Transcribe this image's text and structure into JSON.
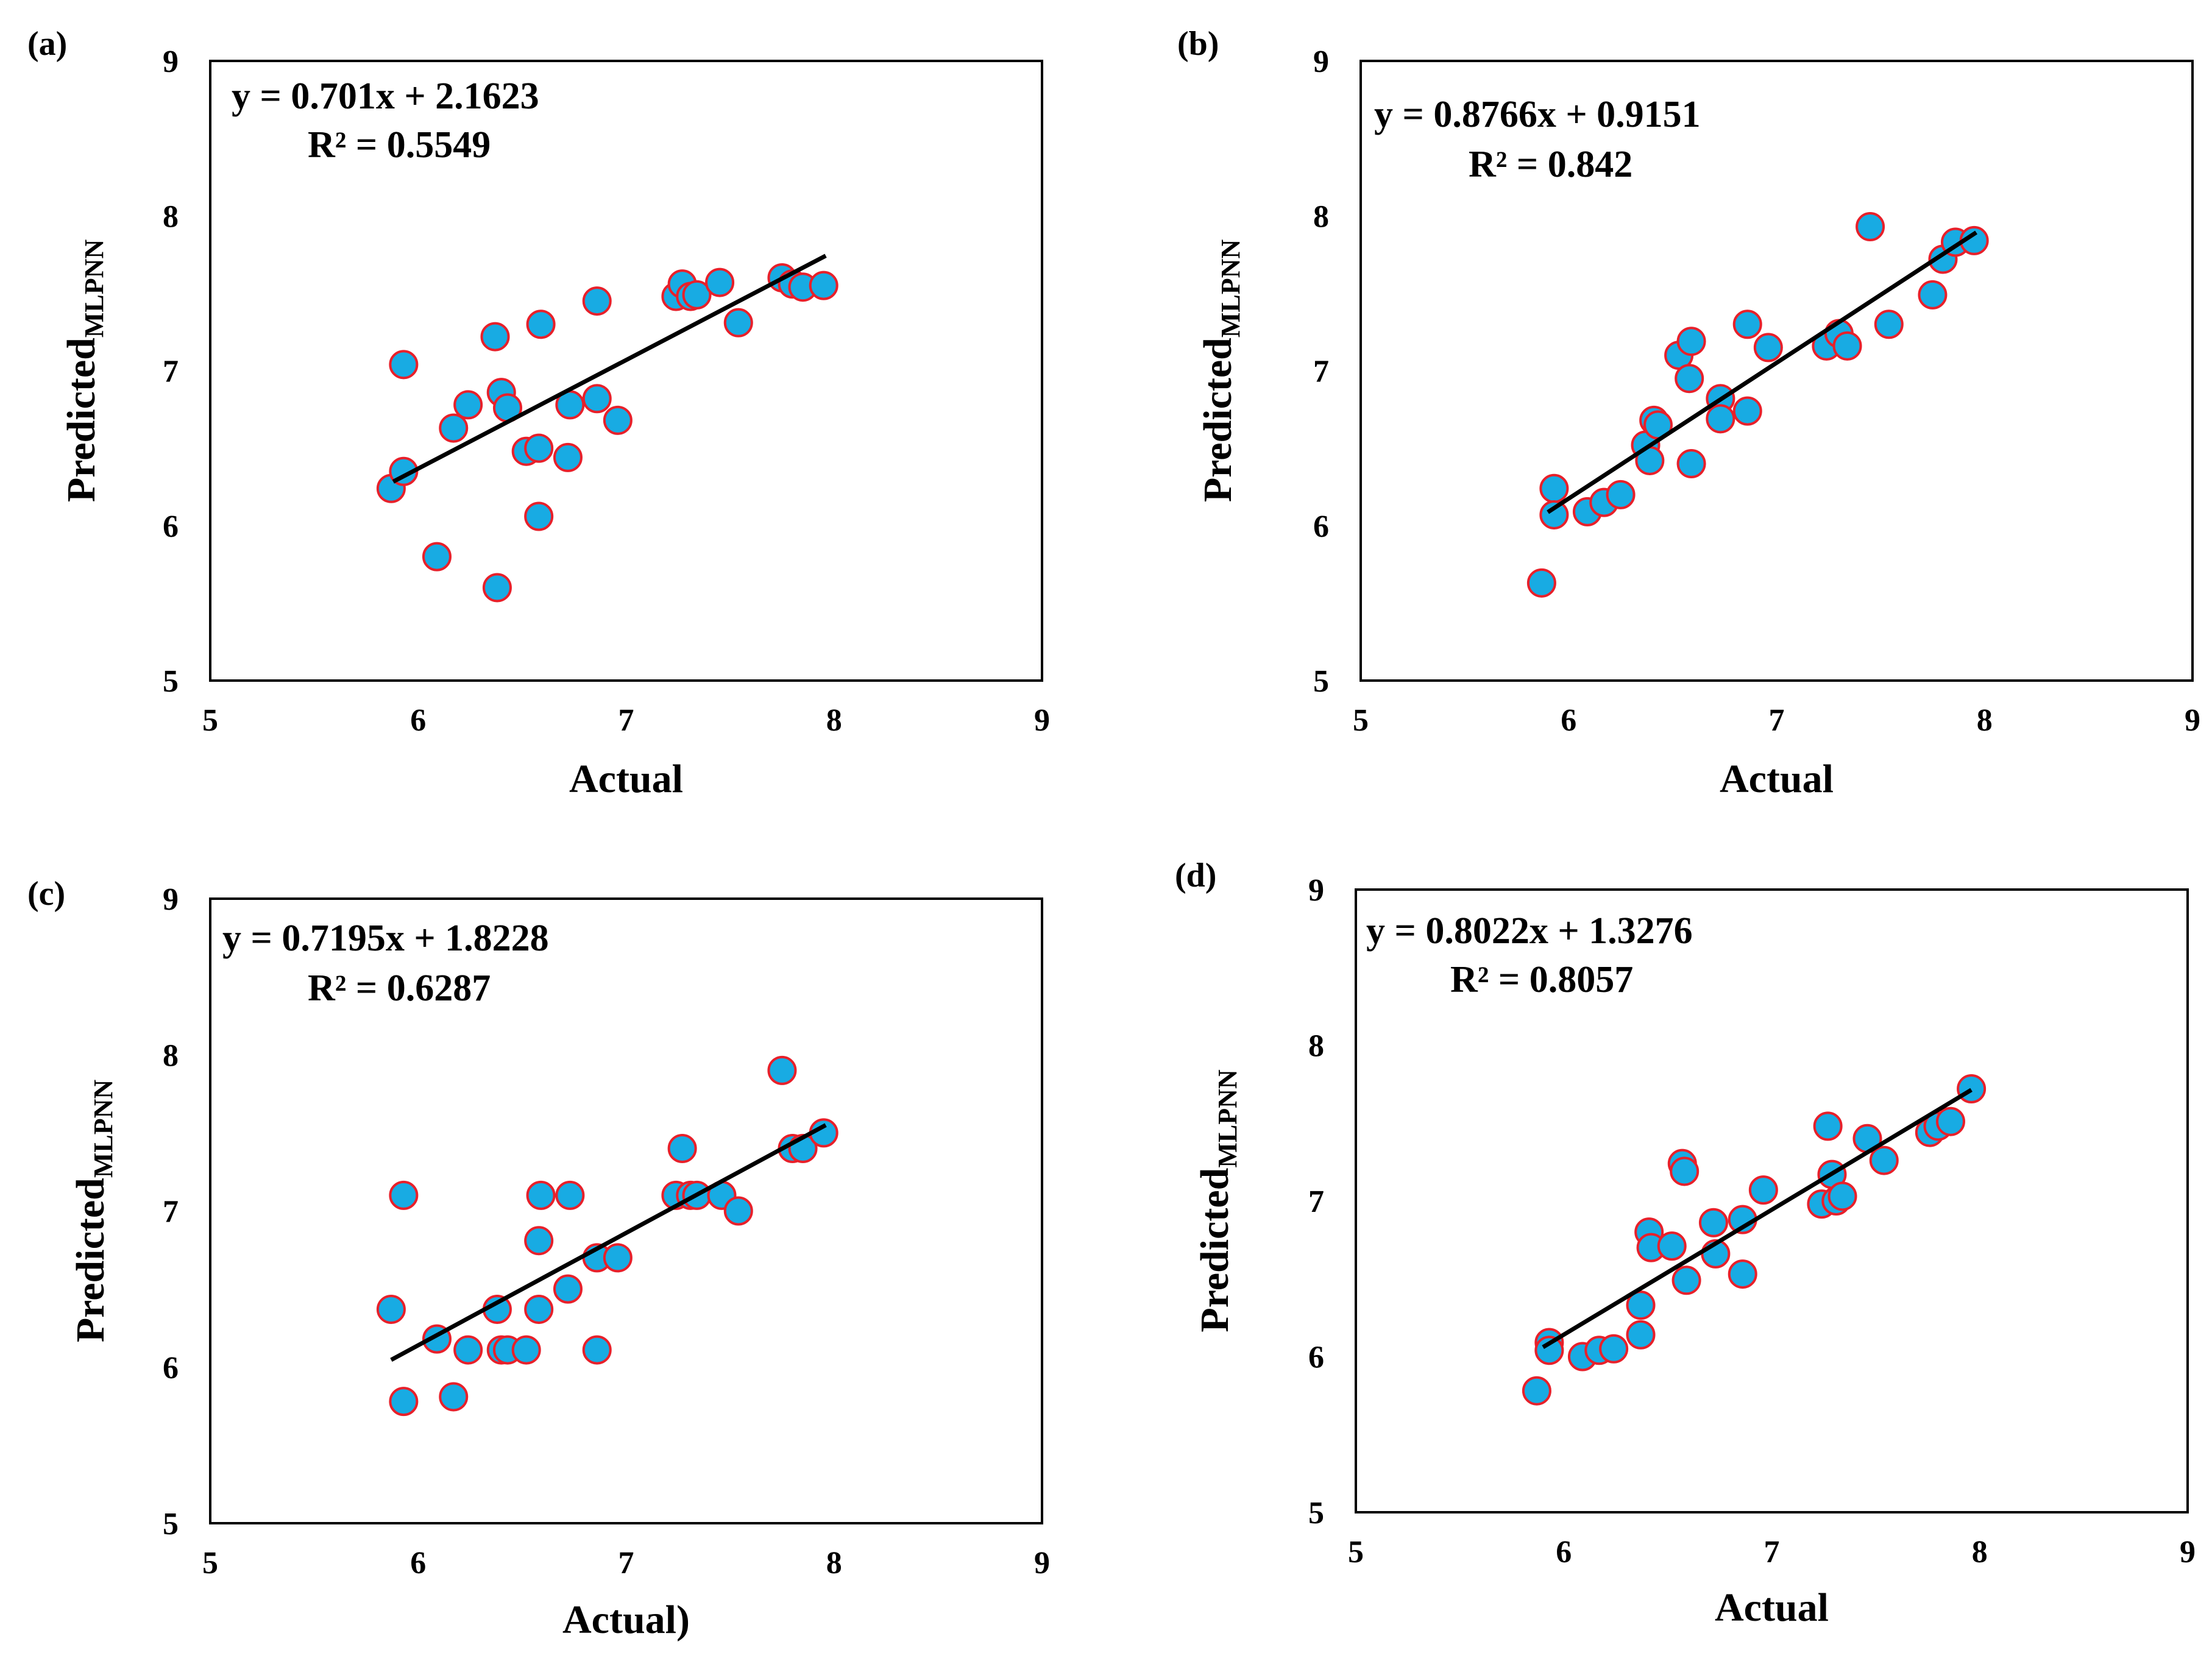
{
  "colors": {
    "marker_fill": "#18ABE3",
    "marker_edge": "#E8202A",
    "trendline": "#000000",
    "background": "#FFFFFF"
  },
  "chart_data": [
    {
      "type": "scatter",
      "panel_label": "(a)",
      "xlabel": "Actual",
      "ylabel_main": "Predicted",
      "ylabel_sub": "MLPNN",
      "xlim": [
        5,
        9
      ],
      "ylim": [
        5,
        9
      ],
      "xticks": [
        "5",
        "6",
        "7",
        "8",
        "9"
      ],
      "yticks": [
        "5",
        "6",
        "7",
        "8",
        "9"
      ],
      "grid": false,
      "equation": "y = 0.701x + 2.1623",
      "r_squared": "R² = 0.5549",
      "trendline": {
        "slope": 0.701,
        "intercept": 2.1623,
        "x_range": [
          5.88,
          7.96
        ]
      },
      "points": [
        {
          "x": 5.87,
          "y": 6.24
        },
        {
          "x": 5.93,
          "y": 6.35
        },
        {
          "x": 5.93,
          "y": 7.04
        },
        {
          "x": 6.09,
          "y": 5.8
        },
        {
          "x": 6.17,
          "y": 6.63
        },
        {
          "x": 6.24,
          "y": 6.78
        },
        {
          "x": 6.37,
          "y": 7.22
        },
        {
          "x": 6.38,
          "y": 5.6
        },
        {
          "x": 6.4,
          "y": 6.86
        },
        {
          "x": 6.43,
          "y": 6.76
        },
        {
          "x": 6.52,
          "y": 6.48
        },
        {
          "x": 6.58,
          "y": 6.5
        },
        {
          "x": 6.58,
          "y": 6.06
        },
        {
          "x": 6.59,
          "y": 7.3
        },
        {
          "x": 6.72,
          "y": 6.44
        },
        {
          "x": 6.73,
          "y": 6.78
        },
        {
          "x": 6.86,
          "y": 7.45
        },
        {
          "x": 6.86,
          "y": 6.82
        },
        {
          "x": 6.96,
          "y": 6.68
        },
        {
          "x": 7.24,
          "y": 7.48
        },
        {
          "x": 7.27,
          "y": 7.56
        },
        {
          "x": 7.31,
          "y": 7.48
        },
        {
          "x": 7.34,
          "y": 7.49
        },
        {
          "x": 7.45,
          "y": 7.57
        },
        {
          "x": 7.54,
          "y": 7.31
        },
        {
          "x": 7.75,
          "y": 7.6
        },
        {
          "x": 7.8,
          "y": 7.56
        },
        {
          "x": 7.85,
          "y": 7.54
        },
        {
          "x": 7.95,
          "y": 7.55
        }
      ]
    },
    {
      "type": "scatter",
      "panel_label": "(b)",
      "xlabel": "Actual",
      "ylabel_main": "Predicted",
      "ylabel_sub": "MLPNN",
      "xlim": [
        5,
        9
      ],
      "ylim": [
        5,
        9
      ],
      "xticks": [
        "5",
        "6",
        "7",
        "8",
        "9"
      ],
      "yticks": [
        "5",
        "6",
        "7",
        "8",
        "9"
      ],
      "grid": false,
      "equation": "y = 0.8766x + 0.9151",
      "r_squared": "R² = 0.842",
      "trendline": {
        "slope": 0.8766,
        "intercept": 0.9151,
        "x_range": [
          5.9,
          7.96
        ]
      },
      "points": [
        {
          "x": 5.87,
          "y": 5.63
        },
        {
          "x": 5.93,
          "y": 6.24
        },
        {
          "x": 5.93,
          "y": 6.07
        },
        {
          "x": 6.09,
          "y": 6.09
        },
        {
          "x": 6.17,
          "y": 6.15
        },
        {
          "x": 6.25,
          "y": 6.2
        },
        {
          "x": 6.37,
          "y": 6.52
        },
        {
          "x": 6.39,
          "y": 6.42
        },
        {
          "x": 6.41,
          "y": 6.68
        },
        {
          "x": 6.43,
          "y": 6.65
        },
        {
          "x": 6.53,
          "y": 7.1
        },
        {
          "x": 6.58,
          "y": 6.95
        },
        {
          "x": 6.59,
          "y": 7.19
        },
        {
          "x": 6.59,
          "y": 6.4
        },
        {
          "x": 6.73,
          "y": 6.82
        },
        {
          "x": 6.73,
          "y": 6.69
        },
        {
          "x": 6.86,
          "y": 7.3
        },
        {
          "x": 6.86,
          "y": 6.74
        },
        {
          "x": 6.96,
          "y": 7.15
        },
        {
          "x": 7.24,
          "y": 7.16
        },
        {
          "x": 7.3,
          "y": 7.24
        },
        {
          "x": 7.34,
          "y": 7.16
        },
        {
          "x": 7.45,
          "y": 7.93
        },
        {
          "x": 7.54,
          "y": 7.3
        },
        {
          "x": 7.75,
          "y": 7.49
        },
        {
          "x": 7.8,
          "y": 7.72
        },
        {
          "x": 7.86,
          "y": 7.83
        },
        {
          "x": 7.95,
          "y": 7.84
        }
      ]
    },
    {
      "type": "scatter",
      "panel_label": "(c)",
      "xlabel": "Actual)",
      "ylabel_main": "Predicted",
      "ylabel_sub": "MLPNN",
      "xlim": [
        5,
        9
      ],
      "ylim": [
        5,
        9
      ],
      "xticks": [
        "5",
        "6",
        "7",
        "8",
        "9"
      ],
      "yticks": [
        "5",
        "6",
        "7",
        "8",
        "9"
      ],
      "grid": false,
      "equation": "y = 0.7195x + 1.8228",
      "r_squared": "R² = 0.6287",
      "trendline": {
        "slope": 0.7195,
        "intercept": 1.8228,
        "x_range": [
          5.87,
          7.96
        ]
      },
      "points": [
        {
          "x": 5.87,
          "y": 6.37
        },
        {
          "x": 5.93,
          "y": 7.1
        },
        {
          "x": 5.93,
          "y": 5.78
        },
        {
          "x": 6.09,
          "y": 6.18
        },
        {
          "x": 6.17,
          "y": 5.81
        },
        {
          "x": 6.24,
          "y": 6.11
        },
        {
          "x": 6.38,
          "y": 6.37
        },
        {
          "x": 6.4,
          "y": 6.11
        },
        {
          "x": 6.43,
          "y": 6.11
        },
        {
          "x": 6.52,
          "y": 6.11
        },
        {
          "x": 6.58,
          "y": 6.37
        },
        {
          "x": 6.58,
          "y": 6.81
        },
        {
          "x": 6.59,
          "y": 7.1
        },
        {
          "x": 6.72,
          "y": 6.5
        },
        {
          "x": 6.73,
          "y": 7.1
        },
        {
          "x": 6.86,
          "y": 6.7
        },
        {
          "x": 6.86,
          "y": 6.11
        },
        {
          "x": 6.96,
          "y": 6.7
        },
        {
          "x": 7.24,
          "y": 7.1
        },
        {
          "x": 7.27,
          "y": 7.4
        },
        {
          "x": 7.31,
          "y": 7.1
        },
        {
          "x": 7.34,
          "y": 7.1
        },
        {
          "x": 7.46,
          "y": 7.1
        },
        {
          "x": 7.54,
          "y": 7.0
        },
        {
          "x": 7.75,
          "y": 7.9
        },
        {
          "x": 7.8,
          "y": 7.4
        },
        {
          "x": 7.85,
          "y": 7.4
        },
        {
          "x": 7.95,
          "y": 7.5
        }
      ]
    },
    {
      "type": "scatter",
      "panel_label": "(d)",
      "xlabel": "Actual",
      "ylabel_main": "Predicted",
      "ylabel_sub": "MLPNN",
      "xlim": [
        5,
        9
      ],
      "ylim": [
        5,
        9
      ],
      "xticks": [
        "5",
        "6",
        "7",
        "8",
        "9"
      ],
      "yticks": [
        "5",
        "6",
        "7",
        "8",
        "9"
      ],
      "grid": false,
      "equation": "y = 0.8022x + 1.3276",
      "r_squared": "R² = 0.8057",
      "trendline": {
        "slope": 0.8022,
        "intercept": 1.3276,
        "x_range": [
          5.9,
          7.96
        ]
      },
      "points": [
        {
          "x": 5.87,
          "y": 5.78
        },
        {
          "x": 5.93,
          "y": 6.09
        },
        {
          "x": 5.93,
          "y": 6.04
        },
        {
          "x": 6.09,
          "y": 6.0
        },
        {
          "x": 6.17,
          "y": 6.04
        },
        {
          "x": 6.24,
          "y": 6.05
        },
        {
          "x": 6.37,
          "y": 6.14
        },
        {
          "x": 6.37,
          "y": 6.33
        },
        {
          "x": 6.41,
          "y": 6.8
        },
        {
          "x": 6.42,
          "y": 6.7
        },
        {
          "x": 6.52,
          "y": 6.71
        },
        {
          "x": 6.57,
          "y": 7.24
        },
        {
          "x": 6.58,
          "y": 7.19
        },
        {
          "x": 6.59,
          "y": 6.49
        },
        {
          "x": 6.72,
          "y": 6.86
        },
        {
          "x": 6.73,
          "y": 6.66
        },
        {
          "x": 6.86,
          "y": 6.88
        },
        {
          "x": 6.86,
          "y": 6.53
        },
        {
          "x": 6.96,
          "y": 7.07
        },
        {
          "x": 7.24,
          "y": 6.98
        },
        {
          "x": 7.27,
          "y": 7.48
        },
        {
          "x": 7.29,
          "y": 7.17
        },
        {
          "x": 7.31,
          "y": 7.0
        },
        {
          "x": 7.34,
          "y": 7.03
        },
        {
          "x": 7.46,
          "y": 7.4
        },
        {
          "x": 7.54,
          "y": 7.26
        },
        {
          "x": 7.76,
          "y": 7.44
        },
        {
          "x": 7.8,
          "y": 7.48
        },
        {
          "x": 7.86,
          "y": 7.51
        },
        {
          "x": 7.96,
          "y": 7.72
        }
      ]
    }
  ]
}
